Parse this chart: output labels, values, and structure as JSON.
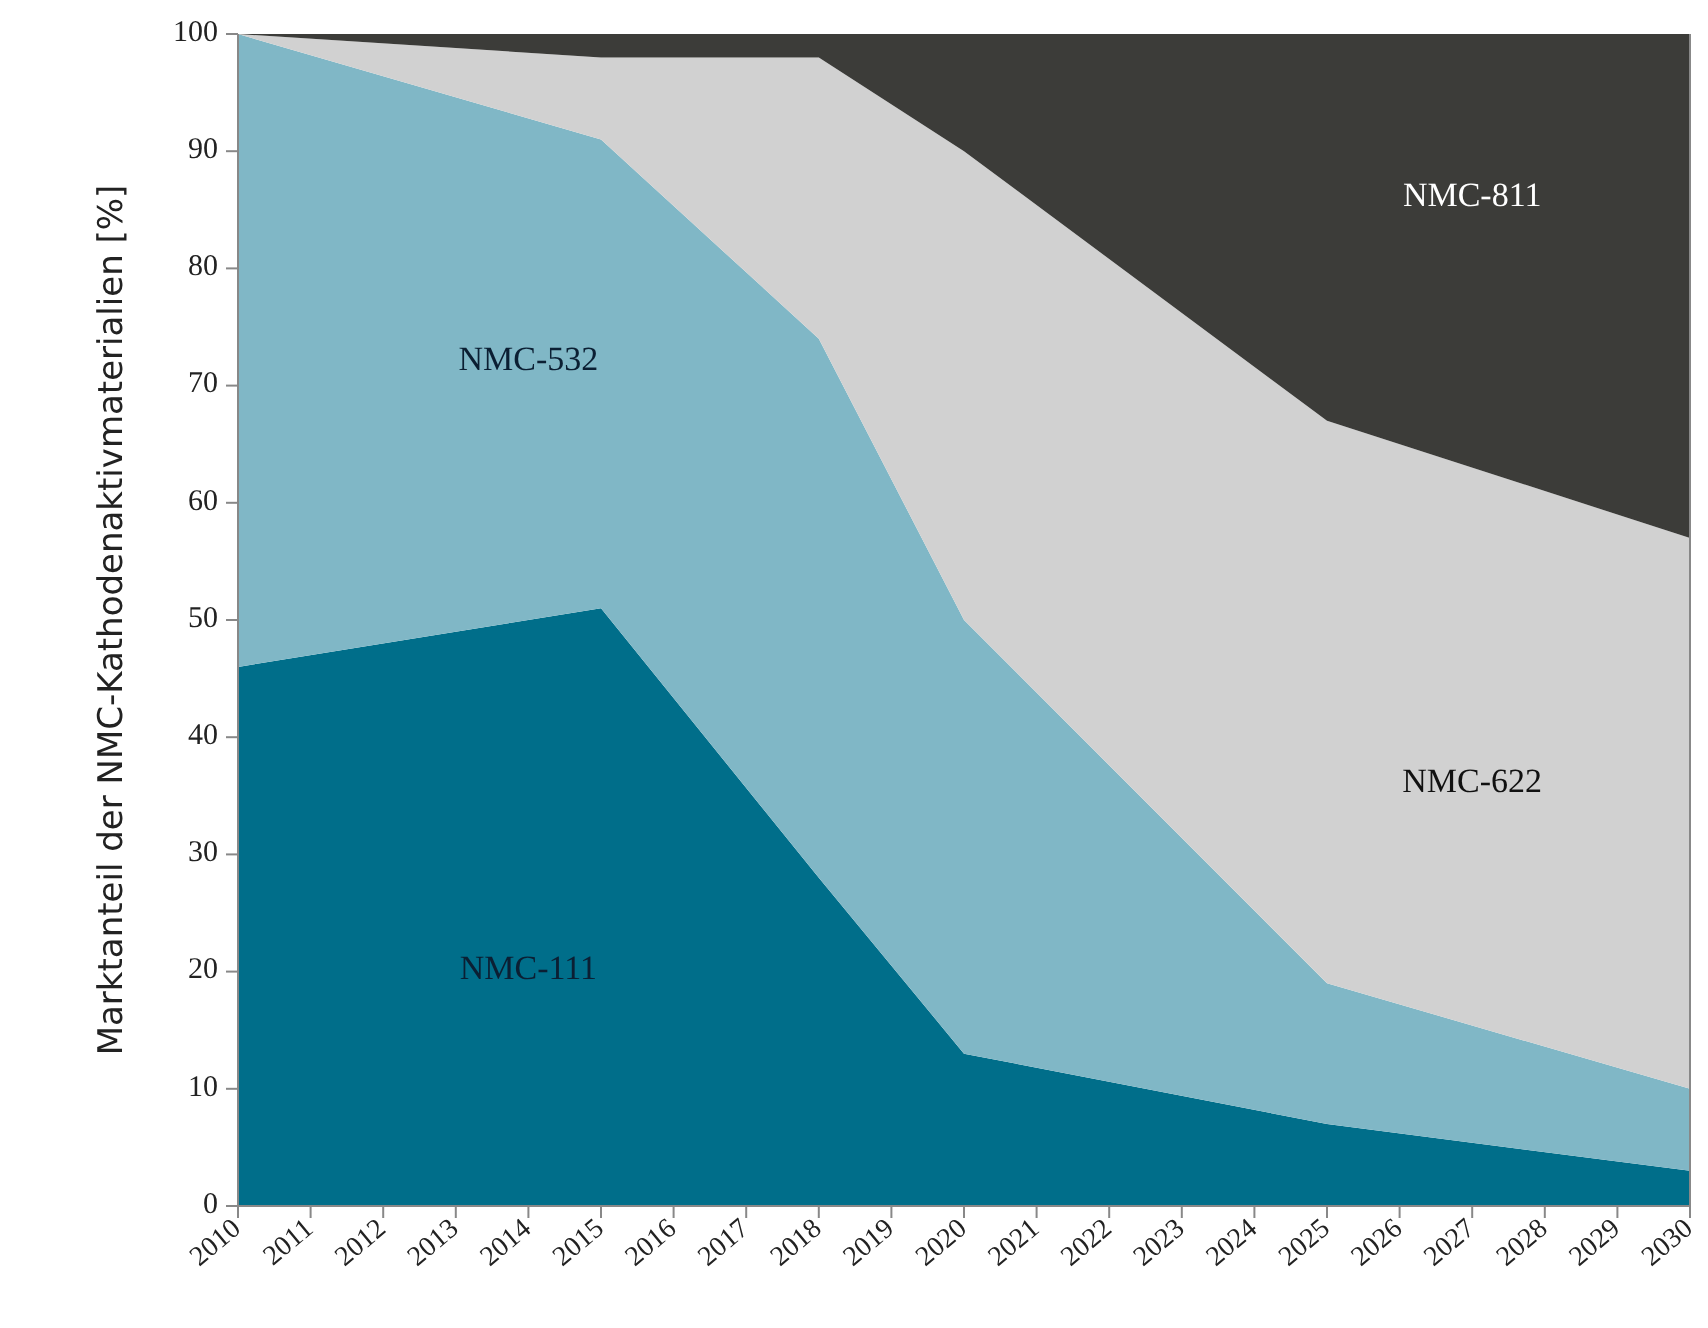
{
  "chart_data": {
    "type": "area",
    "stacked": true,
    "ylabel": "Marktanteil der NMC-Kathodenaktivmaterialien [%]",
    "x": [
      2010,
      2015,
      2018,
      2020,
      2025,
      2030
    ],
    "xlim": [
      2010,
      2030
    ],
    "xticks": [
      2010,
      2011,
      2012,
      2013,
      2014,
      2015,
      2016,
      2017,
      2018,
      2019,
      2020,
      2021,
      2022,
      2023,
      2024,
      2025,
      2026,
      2027,
      2028,
      2029,
      2030
    ],
    "ylim": [
      0,
      100
    ],
    "yticks": [
      0,
      10,
      20,
      30,
      40,
      50,
      60,
      70,
      80,
      90,
      100
    ],
    "series": [
      {
        "name": "NMC-111",
        "color": "#006e8a",
        "values": [
          46,
          51,
          28,
          13,
          7,
          3
        ]
      },
      {
        "name": "NMC-532",
        "color": "#80b7c6",
        "values": [
          54,
          40,
          46,
          37,
          12,
          7
        ]
      },
      {
        "name": "NMC-622",
        "color": "#d1d1d1",
        "values": [
          0,
          7,
          24,
          40,
          48,
          47
        ]
      },
      {
        "name": "NMC-811",
        "color": "#3c3c39",
        "values": [
          0,
          2,
          2,
          10,
          33,
          43
        ]
      }
    ]
  }
}
